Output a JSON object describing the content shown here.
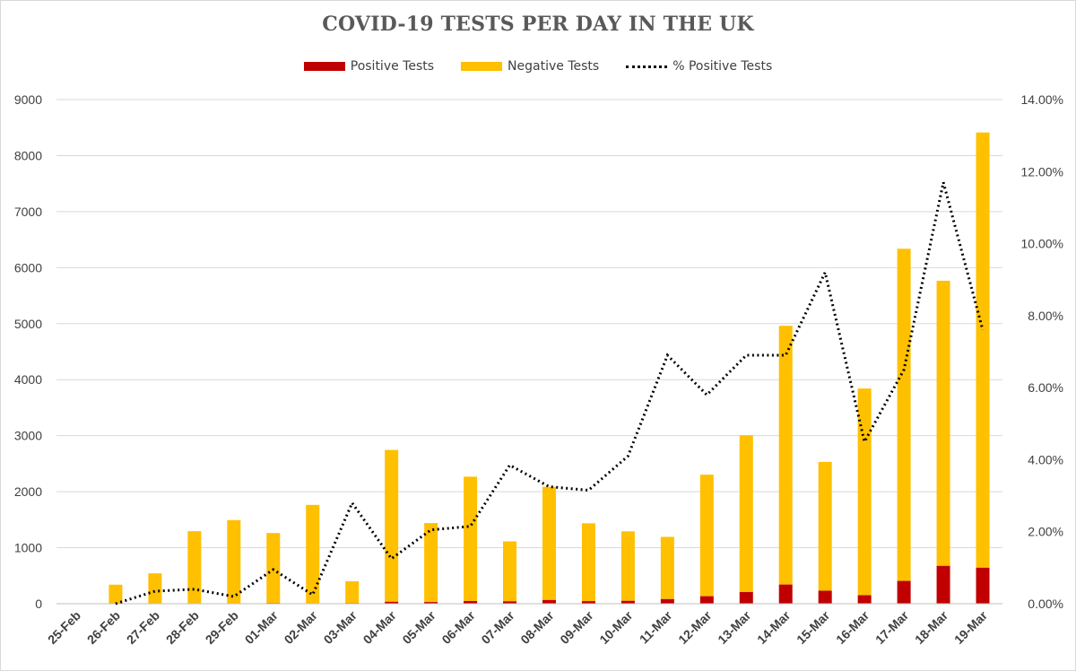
{
  "chart_data": {
    "type": "bar",
    "title": "COVID-19 TESTS PER DAY IN THE UK",
    "categories": [
      "25-Feb",
      "26-Feb",
      "27-Feb",
      "28-Feb",
      "29-Feb",
      "01-Mar",
      "02-Mar",
      "03-Mar",
      "04-Mar",
      "05-Mar",
      "06-Mar",
      "07-Mar",
      "08-Mar",
      "09-Mar",
      "10-Mar",
      "11-Mar",
      "12-Mar",
      "13-Mar",
      "14-Mar",
      "15-Mar",
      "16-Mar",
      "17-Mar",
      "18-Mar",
      "19-Mar"
    ],
    "stacked": true,
    "series": [
      {
        "name": "Positive Tests",
        "kind": "bar",
        "axis": "left",
        "color": "#c00000",
        "values": [
          0,
          0,
          2,
          5,
          3,
          12,
          4,
          11,
          35,
          30,
          48,
          43,
          67,
          46,
          52,
          83,
          134,
          208,
          342,
          232,
          152,
          407,
          676,
          643
        ]
      },
      {
        "name": "Negative Tests",
        "kind": "bar",
        "axis": "left",
        "color": "#ffc000",
        "values": [
          0,
          340,
          540,
          1290,
          1490,
          1250,
          1760,
          390,
          2710,
          1410,
          2220,
          1070,
          2020,
          1390,
          1240,
          1110,
          2170,
          2800,
          4620,
          2300,
          3690,
          5930,
          5090,
          7770
        ]
      },
      {
        "name": "% Positive Tests",
        "kind": "line",
        "style": "dotted",
        "axis": "right",
        "color": "#000000",
        "values": [
          null,
          0.0,
          0.35,
          0.4,
          0.2,
          0.95,
          0.25,
          2.8,
          1.25,
          2.05,
          2.15,
          3.85,
          3.25,
          3.15,
          4.1,
          6.9,
          5.8,
          6.9,
          6.9,
          9.2,
          4.5,
          6.5,
          11.7,
          7.6
        ]
      }
    ],
    "ylim": [
      0,
      9000
    ],
    "yticks": [
      "0",
      "1000",
      "2000",
      "3000",
      "4000",
      "5000",
      "6000",
      "7000",
      "8000",
      "9000"
    ],
    "y2lim": [
      0,
      14
    ],
    "y2ticks": [
      "0.00%",
      "2.00%",
      "4.00%",
      "6.00%",
      "8.00%",
      "10.00%",
      "12.00%",
      "14.00%"
    ],
    "grid": true,
    "legend_position": "top"
  }
}
